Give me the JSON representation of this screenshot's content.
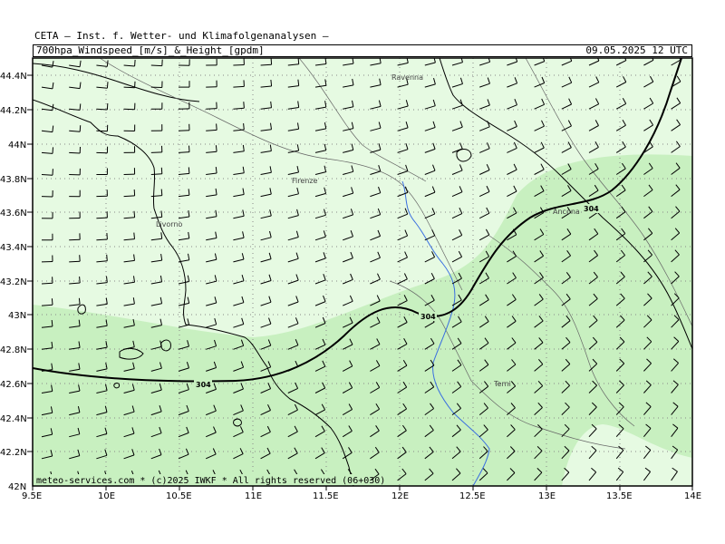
{
  "header": {
    "source": "CETA — Inst. f. Wetter- und Klimafolgenanalysen —",
    "title": "700hpa_Windspeed_[m/s]_&_Height_[gpdm]",
    "valid_time": "09.05.2025  12 UTC"
  },
  "footer": {
    "credit": "meteo-services.com * (c)2025 IWKF * All rights reserved (06+030)"
  },
  "axes": {
    "lat_labels": [
      "44.4N",
      "44.2N",
      "44N",
      "43.8N",
      "43.6N",
      "43.4N",
      "43.2N",
      "43N",
      "42.8N",
      "42.6N",
      "42.4N",
      "42.2N",
      "42N"
    ],
    "lon_labels": [
      "9.5E",
      "10E",
      "10.5E",
      "11E",
      "11.5E",
      "12E",
      "12.5E",
      "13E",
      "13.5E",
      "14E"
    ]
  },
  "cities": [
    {
      "name": "Ravenna"
    },
    {
      "name": "Firenze"
    },
    {
      "name": "Livorno"
    },
    {
      "name": "Ancona"
    },
    {
      "name": "Terni"
    }
  ],
  "contours": [
    {
      "label": "304"
    },
    {
      "label": "304"
    },
    {
      "label": "304"
    }
  ],
  "colors": {
    "shade_light": "#e6fae2",
    "shade_mid": "#c8f0c0",
    "coast": "#000000",
    "river": "#3a6fe0",
    "border": "#555555",
    "barb": "#000000"
  },
  "icons": {
    "wind_barb": "wind-barb-icon"
  }
}
